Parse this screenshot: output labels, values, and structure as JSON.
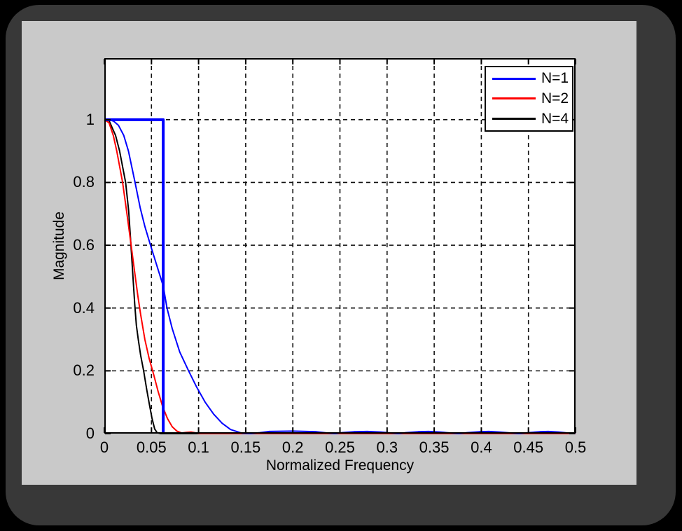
{
  "window": {
    "canvas_bg": "#000000",
    "frame_color": "#383838",
    "window_bg": "#c9c9c9",
    "plot_bg": "#ffffff"
  },
  "chart_data": {
    "type": "line",
    "title": "",
    "xlabel": "Normalized Frequency",
    "ylabel": "Magnitude",
    "xlim": [
      0,
      0.5
    ],
    "ylim": [
      0,
      1.196
    ],
    "grid": "dashed",
    "grid_color": "#111111",
    "axis_color": "#000000",
    "x_ticks": {
      "values": [
        0,
        0.05,
        0.1,
        0.15,
        0.2,
        0.25,
        0.3,
        0.35,
        0.4,
        0.45,
        0.5
      ],
      "labels": [
        "0",
        "0.05",
        "0.1",
        "0.15",
        "0.2",
        "0.25",
        "0.3",
        "0.35",
        "0.4",
        "0.45",
        "0.5"
      ]
    },
    "y_ticks": {
      "values": [
        0,
        0.2,
        0.4,
        0.6,
        0.8,
        1
      ],
      "labels": [
        "0",
        "0.2",
        "0.4",
        "0.6",
        "0.8",
        "1"
      ]
    },
    "legend": {
      "position": "top-right",
      "entries": [
        {
          "label": "N=1",
          "color": "#0000ff"
        },
        {
          "label": "N=2",
          "color": "#ff0000"
        },
        {
          "label": "N=4",
          "color": "#000000"
        }
      ]
    },
    "series": [
      {
        "name": "N=4",
        "color": "#000000",
        "width": 2,
        "in_legend": true,
        "points": [
          [
            0,
            1
          ],
          [
            0.005,
            0.997
          ],
          [
            0.0119,
            0.95
          ],
          [
            0.0162,
            0.9
          ],
          [
            0.0226,
            0.8
          ],
          [
            0.0258,
            0.71
          ],
          [
            0.0276,
            0.63
          ],
          [
            0.0293,
            0.55
          ],
          [
            0.031,
            0.47
          ],
          [
            0.0323,
            0.41
          ],
          [
            0.034,
            0.345
          ],
          [
            0.036,
            0.3
          ],
          [
            0.0385,
            0.25
          ],
          [
            0.0417,
            0.2
          ],
          [
            0.045,
            0.14
          ],
          [
            0.048,
            0.09
          ],
          [
            0.0505,
            0.05
          ],
          [
            0.0534,
            0.015
          ],
          [
            0.056,
            0.003
          ],
          [
            0.06,
            0
          ],
          [
            0.5,
            0
          ]
        ]
      },
      {
        "name": "N=2",
        "color": "#ff0000",
        "width": 2,
        "in_legend": true,
        "points": [
          [
            0,
            1
          ],
          [
            0.005,
            0.99
          ],
          [
            0.0095,
            0.95
          ],
          [
            0.0132,
            0.9
          ],
          [
            0.0194,
            0.8
          ],
          [
            0.024,
            0.7
          ],
          [
            0.028,
            0.61
          ],
          [
            0.0315,
            0.53
          ],
          [
            0.0355,
            0.44
          ],
          [
            0.0385,
            0.38
          ],
          [
            0.043,
            0.3
          ],
          [
            0.0475,
            0.24
          ],
          [
            0.0522,
            0.19
          ],
          [
            0.057,
            0.135
          ],
          [
            0.062,
            0.085
          ],
          [
            0.067,
            0.048
          ],
          [
            0.072,
            0.022
          ],
          [
            0.077,
            0.008
          ],
          [
            0.082,
            0.002
          ],
          [
            0.087,
            0.004
          ],
          [
            0.092,
            0.005
          ],
          [
            0.098,
            0.002
          ],
          [
            0.102,
            0
          ],
          [
            0.5,
            0
          ]
        ]
      },
      {
        "name": "N=1",
        "color": "#0000ff",
        "width": 2,
        "in_legend": true,
        "points": [
          [
            0,
            1
          ],
          [
            0.005,
            1
          ],
          [
            0.01,
            0.995
          ],
          [
            0.015,
            0.982
          ],
          [
            0.0206,
            0.95
          ],
          [
            0.0256,
            0.9
          ],
          [
            0.0326,
            0.8
          ],
          [
            0.038,
            0.72
          ],
          [
            0.043,
            0.66
          ],
          [
            0.049,
            0.6
          ],
          [
            0.0625,
            0.47
          ],
          [
            0.0665,
            0.4
          ],
          [
            0.072,
            0.335
          ],
          [
            0.08,
            0.26
          ],
          [
            0.0894,
            0.2
          ],
          [
            0.098,
            0.148
          ],
          [
            0.107,
            0.1
          ],
          [
            0.116,
            0.062
          ],
          [
            0.125,
            0.033
          ],
          [
            0.134,
            0.013
          ],
          [
            0.1465,
            0.001
          ],
          [
            0.155,
            0
          ],
          [
            0.165,
            0.003
          ],
          [
            0.175,
            0.007
          ],
          [
            0.2,
            0.008
          ],
          [
            0.225,
            0.006
          ],
          [
            0.237,
            0.002
          ],
          [
            0.245,
            0
          ],
          [
            0.252,
            0.003
          ],
          [
            0.265,
            0.006
          ],
          [
            0.279,
            0.007
          ],
          [
            0.293,
            0.005
          ],
          [
            0.305,
            0.002
          ],
          [
            0.312,
            0
          ],
          [
            0.32,
            0.003
          ],
          [
            0.333,
            0.006
          ],
          [
            0.344,
            0.007
          ],
          [
            0.356,
            0.005
          ],
          [
            0.368,
            0.002
          ],
          [
            0.376,
            0
          ],
          [
            0.385,
            0.003
          ],
          [
            0.398,
            0.006
          ],
          [
            0.408,
            0.007
          ],
          [
            0.419,
            0.005
          ],
          [
            0.432,
            0.002
          ],
          [
            0.44,
            0
          ],
          [
            0.45,
            0.003
          ],
          [
            0.462,
            0.006
          ],
          [
            0.471,
            0.007
          ],
          [
            0.482,
            0.005
          ],
          [
            0.492,
            0.002
          ],
          [
            0.5,
            0.001
          ]
        ]
      },
      {
        "name": "ideal-brickwall-filter",
        "color": "#0000ff",
        "width": 4,
        "in_legend": false,
        "points": [
          [
            0,
            1
          ],
          [
            0.0625,
            1
          ],
          [
            0.0625,
            0
          ]
        ]
      }
    ]
  }
}
